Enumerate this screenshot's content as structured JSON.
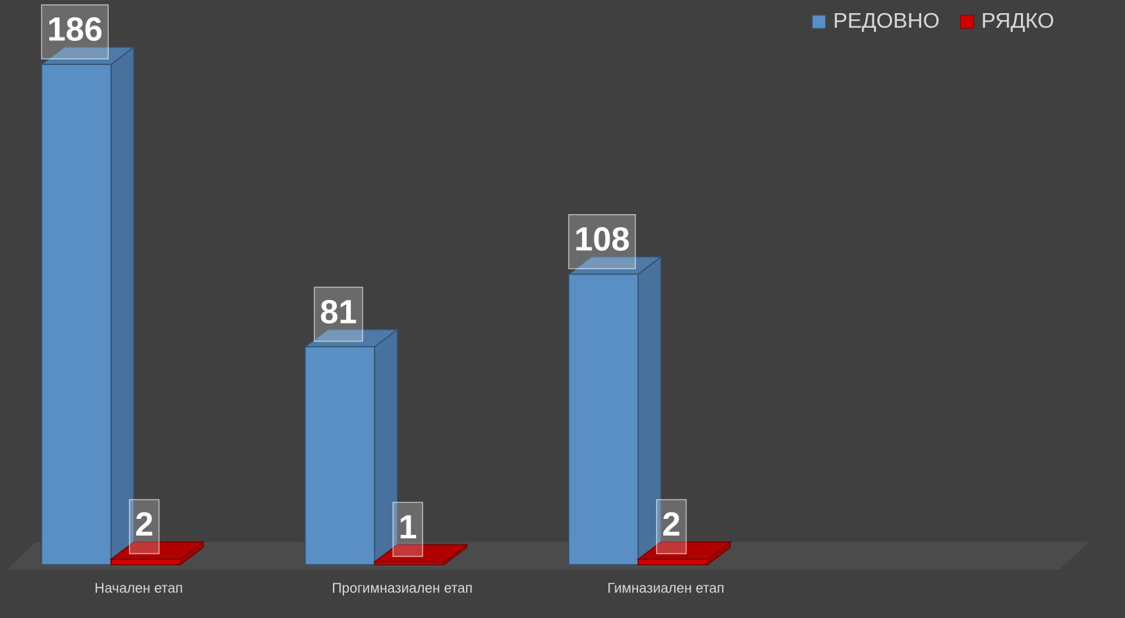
{
  "chart_data": {
    "type": "bar3d",
    "categories": [
      "Начален етап",
      "Прогимназиален етап",
      "Гимназиален етап"
    ],
    "series": [
      {
        "name": "РЕДОВНО",
        "color": "#5a8fc4",
        "values": [
          186,
          81,
          108
        ]
      },
      {
        "name": "РЯДКО",
        "color": "#d00000",
        "values": [
          2,
          1,
          2
        ]
      }
    ],
    "legend": "top-right"
  }
}
